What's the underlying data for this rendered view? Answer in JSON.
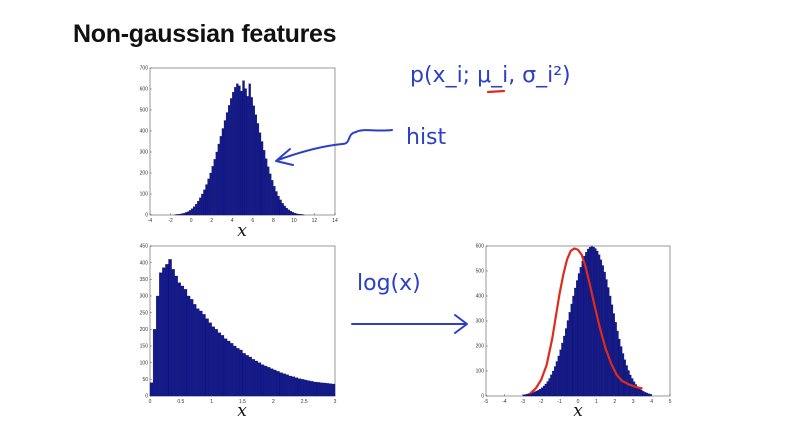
{
  "slide": {
    "title": "Non-gaussian features"
  },
  "annotations": {
    "formula": "p(x_i; μ_i, σ_i²)",
    "hist": "hist",
    "log": "log(x)",
    "ink_color": "#2b3fc9",
    "highlight_color": "#e02a1a"
  },
  "chart_data": [
    {
      "type": "bar",
      "name": "top-histogram",
      "xlabel": "x",
      "xlim": [
        -4,
        14
      ],
      "ylim": [
        0,
        700
      ],
      "xticks": [
        -4,
        -2,
        0,
        2,
        4,
        6,
        8,
        10,
        12,
        14
      ],
      "yticks": [
        0,
        100,
        200,
        300,
        400,
        500,
        600,
        700
      ],
      "bar_color": "#141a8c",
      "bins": {
        "start": -1.6,
        "width": 0.2,
        "values": [
          2,
          3,
          4,
          6,
          8,
          12,
          16,
          22,
          30,
          40,
          52,
          66,
          82,
          100,
          120,
          145,
          172,
          200,
          232,
          265,
          300,
          338,
          375,
          412,
          450,
          488,
          522,
          555,
          585,
          608,
          625,
          615,
          590,
          640,
          602,
          565,
          625,
          560,
          520,
          478,
          436,
          392,
          350,
          308,
          268,
          230,
          196,
          165,
          137,
          112,
          90,
          72,
          56,
          43,
          33,
          25,
          18,
          13,
          9,
          6,
          4,
          3,
          2
        ]
      }
    },
    {
      "type": "bar",
      "name": "bottom-left-histogram",
      "xlabel": "x",
      "xlim": [
        0,
        3
      ],
      "ylim": [
        0,
        450
      ],
      "xticks": [
        0,
        0.5,
        1,
        1.5,
        2,
        2.5,
        3
      ],
      "yticks": [
        0,
        50,
        100,
        150,
        200,
        250,
        300,
        350,
        400,
        450
      ],
      "bar_color": "#141a8c",
      "bins": {
        "start": 0,
        "width": 0.05,
        "values": [
          40,
          200,
          300,
          370,
          385,
          395,
          410,
          380,
          360,
          340,
          330,
          320,
          300,
          290,
          275,
          262,
          255,
          245,
          232,
          220,
          208,
          200,
          190,
          182,
          172,
          165,
          158,
          150,
          143,
          138,
          128,
          122,
          117,
          110,
          105,
          100,
          94,
          90,
          86,
          82,
          78,
          74,
          70,
          67,
          64,
          60,
          58,
          55,
          52,
          50,
          48,
          46,
          44,
          42,
          41,
          40,
          39,
          38,
          37,
          36
        ]
      }
    },
    {
      "type": "bar",
      "name": "bottom-right-histogram",
      "xlabel": "x",
      "xlim": [
        -5,
        5
      ],
      "ylim": [
        0,
        600
      ],
      "xticks": [
        -5,
        -4,
        -3,
        -2,
        -1,
        0,
        1,
        2,
        3,
        4,
        5
      ],
      "yticks": [
        0,
        100,
        200,
        300,
        400,
        500,
        600
      ],
      "bar_color": "#141a8c",
      "fit_color": "#e02a1a",
      "bins": {
        "start": -3,
        "width": 0.1,
        "values": [
          5,
          6,
          8,
          10,
          12,
          14,
          17,
          20,
          24,
          28,
          33,
          40,
          48,
          58,
          70,
          85,
          100,
          118,
          138,
          160,
          185,
          212,
          240,
          270,
          302,
          335,
          368,
          400,
          432,
          462,
          490,
          515,
          540,
          560,
          575,
          588,
          595,
          598,
          596,
          590,
          580,
          565,
          545,
          522,
          496,
          466,
          434,
          400,
          365,
          330,
          295,
          260,
          228,
          198,
          170,
          145,
          122,
          102,
          84,
          70,
          57,
          46,
          37,
          30,
          24,
          19,
          15,
          12,
          9,
          7
        ]
      },
      "fit_curve": {
        "x": [
          -2.6,
          -2.3,
          -2.0,
          -1.7,
          -1.4,
          -1.2,
          -1.0,
          -0.8,
          -0.6,
          -0.4,
          -0.2,
          0,
          0.2,
          0.4,
          0.6,
          0.8,
          1.0,
          1.2,
          1.5,
          1.8,
          2.1,
          2.4,
          2.8,
          3.2,
          3.5
        ],
        "y": [
          10,
          30,
          65,
          125,
          230,
          320,
          410,
          485,
          545,
          580,
          590,
          585,
          565,
          520,
          460,
          395,
          330,
          270,
          190,
          130,
          85,
          60,
          45,
          35,
          30
        ]
      }
    }
  ]
}
